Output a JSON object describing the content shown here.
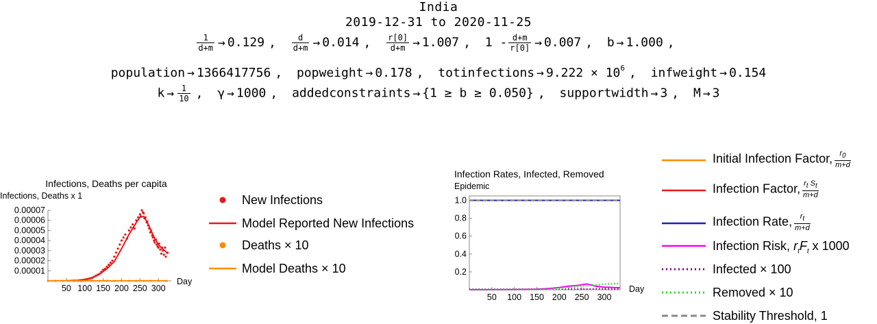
{
  "header": {
    "country": "India",
    "date_range": "2019-12-31 to 2020-11-25"
  },
  "params": {
    "row1": [
      {
        "num": "1",
        "den": "d+m",
        "value": "0.129"
      },
      {
        "num": "d",
        "den": "d+m",
        "value": "0.014"
      },
      {
        "num": "r[0]",
        "den": "d+m",
        "value": "1.007"
      },
      {
        "prefix": "1 -",
        "num": "d+m",
        "den": "r[0]",
        "value": "0.007"
      },
      {
        "name": "b",
        "value": "1.000"
      }
    ],
    "row2": [
      {
        "name": "population",
        "value": "1366417756"
      },
      {
        "name": "popweight",
        "value": "0.178"
      },
      {
        "name": "totinfections",
        "value": "9.222 × 10",
        "exp": "6"
      },
      {
        "name": "infweight",
        "value": "0.154"
      }
    ],
    "row3": [
      {
        "name": "k",
        "num": "1",
        "den": "10"
      },
      {
        "name": "γ",
        "value": "1000"
      },
      {
        "name": "addedconstraints",
        "value": "{1 ≥ b ≥ 0.050}"
      },
      {
        "name": "supportwidth",
        "value": "3"
      },
      {
        "name": "M",
        "value": "3"
      }
    ],
    "arrow": "→",
    "comma": ","
  },
  "chart_data": [
    {
      "type": "scatter",
      "title": "Infections, Deaths per capita",
      "ylabel": "Infections, Deaths x 1",
      "xlabel": "Day",
      "xlim": [
        0,
        335
      ],
      "ylim": [
        0,
        7e-05
      ],
      "x_ticks": [
        50,
        100,
        150,
        200,
        250,
        300
      ],
      "y_ticks": [
        1e-05,
        2e-05,
        3e-05,
        4e-05,
        5e-05,
        6e-05,
        7e-05
      ],
      "y_tick_labels": [
        "0.00001",
        "0.00002",
        "0.00003",
        "0.00004",
        "0.00005",
        "0.00006",
        "0.00007"
      ],
      "series": [
        {
          "name": "New Infections",
          "kind": "points",
          "color": "#e41a1c",
          "x": [
            60,
            70,
            80,
            90,
            100,
            105,
            110,
            115,
            120,
            125,
            130,
            135,
            140,
            145,
            150,
            155,
            160,
            165,
            170,
            175,
            180,
            185,
            190,
            195,
            200,
            205,
            210,
            215,
            220,
            225,
            230,
            235,
            240,
            245,
            250,
            252,
            255,
            258,
            260,
            262,
            265,
            268,
            270,
            272,
            275,
            278,
            280,
            283,
            285,
            288,
            290,
            293,
            295,
            298,
            300,
            302,
            305,
            308,
            310,
            312,
            315,
            318,
            320,
            325
          ],
          "y": [
            0,
            0,
            0,
            0,
            1e-06,
            1.5e-06,
            2e-06,
            2.5e-06,
            3e-06,
            4e-06,
            5e-06,
            6e-06,
            7e-06,
            9e-06,
            1.1e-05,
            1.2e-05,
            1.4e-05,
            1.6e-05,
            1.8e-05,
            2e-05,
            2.4e-05,
            2.8e-05,
            3.2e-05,
            3.6e-05,
            4e-05,
            4.3e-05,
            4.6e-05,
            4.2e-05,
            5e-05,
            5.3e-05,
            5.6e-05,
            5.2e-05,
            6e-05,
            6.3e-05,
            6.6e-05,
            6.4e-05,
            7e-05,
            6.8e-05,
            6.7e-05,
            6.2e-05,
            6.3e-05,
            5.8e-05,
            5.9e-05,
            5.5e-05,
            5.2e-05,
            4.8e-05,
            5e-05,
            4.5e-05,
            4.3e-05,
            4e-05,
            3.8e-05,
            4.1e-05,
            3.6e-05,
            3.4e-05,
            3.3e-05,
            3.7e-05,
            3.1e-05,
            2.7e-05,
            3.3e-05,
            3e-05,
            2.6e-05,
            3.3e-05,
            2.4e-05,
            2.8e-05
          ]
        },
        {
          "name": "Model Reported New Infections",
          "kind": "line",
          "color": "#e41a1c",
          "x": [
            0,
            50,
            80,
            100,
            120,
            140,
            160,
            180,
            200,
            220,
            240,
            250,
            260,
            270,
            280,
            290,
            300,
            310,
            320,
            325
          ],
          "y": [
            0,
            2e-07,
            6e-07,
            1.4e-06,
            3.2e-06,
            6.5e-06,
            1.2e-05,
            1.9e-05,
            3.2e-05,
            4.6e-05,
            5.8e-05,
            6.3e-05,
            6.4e-05,
            5.8e-05,
            5e-05,
            4.2e-05,
            3.6e-05,
            3.2e-05,
            2.9e-05,
            2.7e-05
          ]
        },
        {
          "name": "Deaths × 10",
          "kind": "points",
          "color": "#ff8c00",
          "x": [
            0,
            20,
            40,
            60,
            80,
            100,
            120,
            140,
            160,
            180,
            200,
            220,
            240,
            260,
            280,
            300,
            320
          ],
          "y": [
            0,
            0,
            0,
            0,
            0,
            0,
            0,
            0,
            0,
            0,
            0,
            0,
            0,
            0,
            0,
            0,
            0
          ]
        },
        {
          "name": "Model Deaths × 10",
          "kind": "line",
          "color": "#ff8c00",
          "x": [
            0,
            325
          ],
          "y": [
            0,
            0
          ]
        }
      ]
    },
    {
      "type": "line",
      "title": "Infection Rates, Infected, Removed",
      "ylabel": "Epidemic",
      "xlabel": "Day",
      "xlim": [
        0,
        335
      ],
      "ylim": [
        0,
        1.05
      ],
      "x_ticks": [
        50,
        100,
        150,
        200,
        250,
        300
      ],
      "y_ticks": [
        0.2,
        0.4,
        0.6,
        0.8,
        1.0
      ],
      "y_tick_labels": [
        "0.2",
        "0.4",
        "0.6",
        "0.8",
        "1.0"
      ],
      "series": [
        {
          "name": "Initial Infection Factor",
          "color": "#ff8c00",
          "style": "solid",
          "x": [
            0,
            335
          ],
          "y": [
            1.0,
            1.0
          ]
        },
        {
          "name": "Infection Factor",
          "color": "#e41a1c",
          "style": "solid",
          "x": [
            0,
            335
          ],
          "y": [
            1.0,
            1.0
          ]
        },
        {
          "name": "Infection Rate",
          "color": "#1f1fb4",
          "style": "solid",
          "x": [
            0,
            335
          ],
          "y": [
            1.0,
            1.0
          ]
        },
        {
          "name": "Infection Risk, x 1000",
          "color": "#ff00ff",
          "style": "solid",
          "x": [
            0,
            100,
            150,
            180,
            200,
            220,
            240,
            260,
            270,
            280,
            300,
            320,
            335
          ],
          "y": [
            0,
            0.002,
            0.006,
            0.015,
            0.025,
            0.04,
            0.048,
            0.065,
            0.055,
            0.04,
            0.03,
            0.025,
            0.022
          ]
        },
        {
          "name": "Infected × 100",
          "color": "#800080",
          "style": "dotted",
          "x": [
            0,
            335
          ],
          "y": [
            0.005,
            0.01
          ]
        },
        {
          "name": "Removed × 10",
          "color": "#22dd22",
          "style": "dotted",
          "x": [
            0,
            150,
            200,
            250,
            280,
            300,
            320,
            335
          ],
          "y": [
            0,
            0.003,
            0.015,
            0.04,
            0.055,
            0.062,
            0.068,
            0.07
          ]
        },
        {
          "name": "Stability Threshold, 1",
          "color": "#888888",
          "style": "dashed",
          "x": [
            0,
            335
          ],
          "y": [
            1.0,
            1.0
          ]
        }
      ]
    }
  ],
  "legend1": [
    {
      "label": "New Infections",
      "symbol": "dot",
      "color": "#e41a1c"
    },
    {
      "label": "Model Reported New Infections",
      "symbol": "line",
      "color": "#e41a1c"
    },
    {
      "label": "Deaths × 10",
      "symbol": "dot",
      "color": "#ff8c00"
    },
    {
      "label": "Model Deaths × 10",
      "symbol": "line",
      "color": "#ff8c00"
    }
  ],
  "legend2": {
    "initial_factor": {
      "label": "Initial Infection Factor,",
      "num": "r",
      "num_sub": "0",
      "den": "m+d",
      "color": "#ff8c00"
    },
    "factor": {
      "label": "Infection Factor,",
      "num": "r",
      "num_sub": "t",
      "num2": "S",
      "num2_sub": "t",
      "den": "m+d",
      "color": "#e41a1c"
    },
    "rate": {
      "label": "Infection Rate,",
      "num": "r",
      "num_sub": "t",
      "den": "m+d",
      "color": "#1f1fb4"
    },
    "risk": {
      "label": "Infection Risk,",
      "r": "r",
      "r_sub": "t",
      "f": "F",
      "f_sub": "t",
      "suffix": "x 1000",
      "color": "#ff00ff"
    },
    "infected": {
      "label": "Infected × 100",
      "color": "#800080"
    },
    "removed": {
      "label": "Removed × 10",
      "color": "#22dd22"
    },
    "threshold": {
      "label": "Stability Threshold, 1",
      "color": "#888888"
    }
  }
}
